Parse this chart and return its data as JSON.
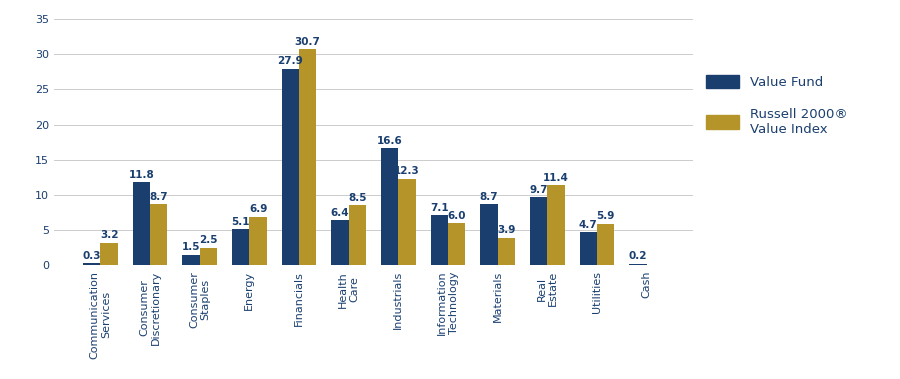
{
  "categories": [
    "Communication\nServices",
    "Consumer\nDiscretionary",
    "Consumer\nStaples",
    "Energy",
    "Financials",
    "Health\nCare",
    "Industrials",
    "Information\nTechnology",
    "Materials",
    "Real\nEstate",
    "Utilities",
    "Cash"
  ],
  "value_fund": [
    0.3,
    11.8,
    1.5,
    5.1,
    27.9,
    6.4,
    16.6,
    7.1,
    8.7,
    9.7,
    4.7,
    0.2
  ],
  "russell_index": [
    3.2,
    8.7,
    2.5,
    6.9,
    30.7,
    8.5,
    12.3,
    6.0,
    3.9,
    11.4,
    5.9,
    0.0
  ],
  "value_fund_color": "#1a3f6f",
  "russell_color": "#b5952a",
  "ylim": [
    0,
    35
  ],
  "yticks": [
    0,
    5,
    10,
    15,
    20,
    25,
    30,
    35
  ],
  "legend_value_fund": "Value Fund",
  "legend_russell": "Russell 2000®\nValue Index",
  "bar_width": 0.35,
  "tick_fontsize": 8.0,
  "legend_fontsize": 9.5,
  "value_label_fontsize": 7.5,
  "background_color": "#ffffff",
  "grid_color": "#cccccc"
}
